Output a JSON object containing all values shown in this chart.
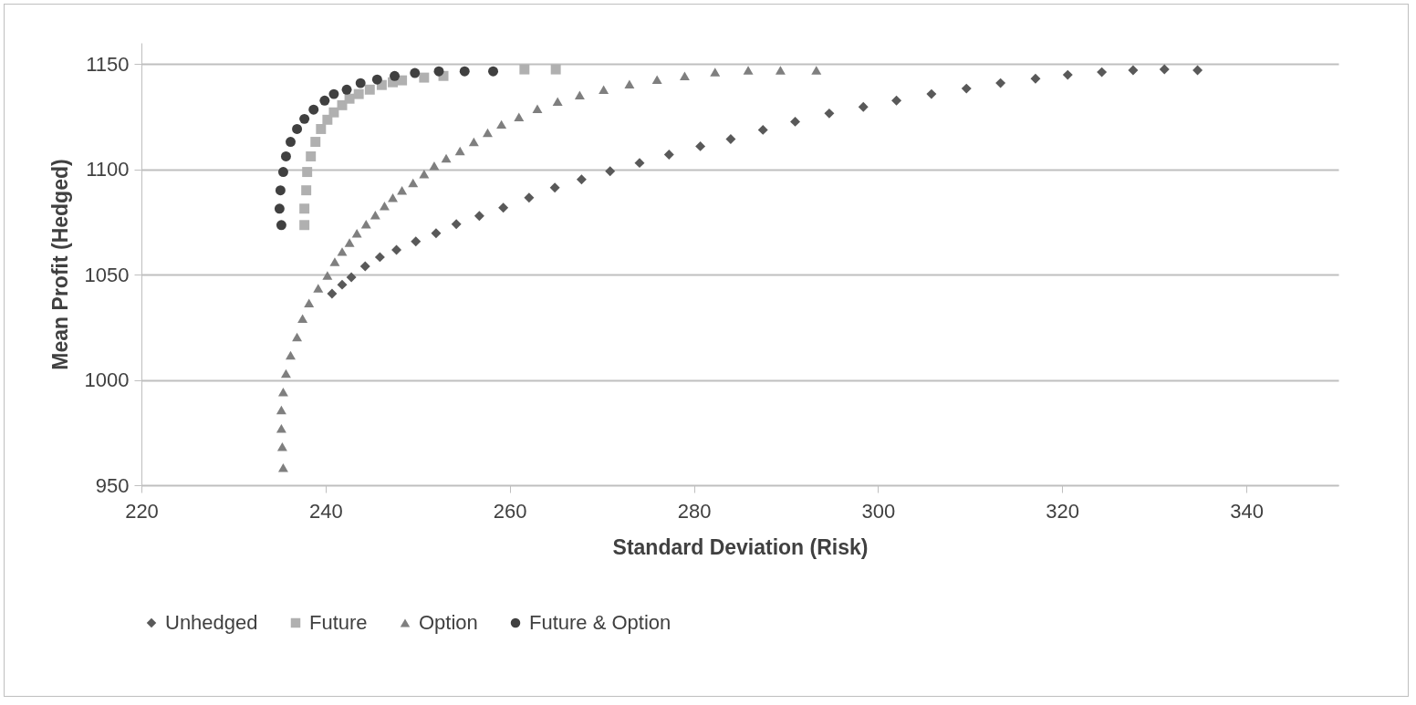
{
  "chart_data": {
    "type": "scatter",
    "xlabel": "Standard Deviation (Risk)",
    "ylabel": "Mean Profit (Hedged)",
    "xlim": [
      220,
      350
    ],
    "xticks": [
      220,
      240,
      260,
      280,
      300,
      320,
      340
    ],
    "ylim": [
      950,
      1160
    ],
    "yticks": [
      950,
      1000,
      1050,
      1100,
      1150
    ],
    "grid": "y",
    "legend": "bottom",
    "series": [
      {
        "name": "Unhedged",
        "color": "#595959",
        "marker": "diamond",
        "x": [
          240.7,
          241.8,
          242.8,
          244.3,
          245.9,
          247.7,
          249.8,
          252.0,
          254.2,
          256.7,
          259.3,
          262.1,
          264.9,
          267.8,
          270.9,
          274.1,
          277.3,
          280.7,
          284.0,
          287.5,
          291.0,
          294.7,
          298.4,
          302.0,
          305.8,
          309.6,
          313.3,
          317.1,
          320.6,
          324.3,
          327.7,
          331.1,
          334.7
        ],
        "values": [
          1040.9,
          1045.2,
          1048.7,
          1053.9,
          1058.3,
          1061.7,
          1065.7,
          1069.6,
          1073.9,
          1077.8,
          1081.7,
          1086.5,
          1091.3,
          1095.2,
          1099.1,
          1103.0,
          1107.0,
          1110.9,
          1114.3,
          1118.7,
          1122.6,
          1126.5,
          1129.6,
          1132.6,
          1135.7,
          1138.3,
          1140.9,
          1143.0,
          1144.8,
          1146.1,
          1147.0,
          1147.4,
          1147.0
        ]
      },
      {
        "name": "Future",
        "color": "#b0b0b0",
        "marker": "square",
        "x": [
          237.7,
          237.7,
          237.9,
          238.0,
          238.4,
          238.9,
          239.5,
          240.2,
          240.9,
          241.8,
          242.6,
          243.6,
          244.8,
          246.1,
          247.3,
          248.3,
          250.7,
          252.8,
          261.6,
          265.0
        ],
        "values": [
          1073.5,
          1081.3,
          1090.0,
          1098.7,
          1106.1,
          1113.0,
          1119.1,
          1123.5,
          1127.0,
          1130.4,
          1133.5,
          1135.7,
          1137.8,
          1140.0,
          1141.3,
          1142.2,
          1143.5,
          1144.3,
          1147.4,
          1147.4
        ]
      },
      {
        "name": "Option",
        "color": "#7f7f7f",
        "marker": "triangle",
        "x": [
          235.4,
          235.3,
          235.2,
          235.2,
          235.4,
          235.7,
          236.2,
          236.9,
          237.5,
          238.2,
          239.2,
          240.2,
          241.0,
          241.8,
          242.6,
          243.4,
          244.4,
          245.4,
          246.4,
          247.3,
          248.3,
          249.5,
          250.7,
          251.8,
          253.1,
          254.6,
          256.1,
          257.6,
          259.1,
          261.0,
          263.0,
          265.2,
          267.6,
          270.2,
          273.0,
          276.0,
          279.0,
          282.3,
          285.9,
          289.4,
          293.3
        ],
        "values": [
          958.3,
          968.3,
          977.0,
          985.7,
          994.3,
          1003.0,
          1011.7,
          1020.4,
          1029.1,
          1036.5,
          1043.5,
          1049.6,
          1056.1,
          1060.9,
          1065.2,
          1069.6,
          1073.9,
          1078.3,
          1082.6,
          1086.5,
          1090.0,
          1093.5,
          1097.8,
          1101.7,
          1105.2,
          1108.7,
          1113.0,
          1117.4,
          1121.3,
          1124.8,
          1128.7,
          1132.2,
          1135.2,
          1137.8,
          1140.4,
          1142.6,
          1144.3,
          1146.1,
          1147.0,
          1147.0,
          1147.0
        ]
      },
      {
        "name": "Future & Option",
        "color": "#404040",
        "marker": "circle",
        "x": [
          235.2,
          235.0,
          235.1,
          235.4,
          235.7,
          236.2,
          236.9,
          237.7,
          238.7,
          239.9,
          240.9,
          242.3,
          243.8,
          245.6,
          247.5,
          249.7,
          252.3,
          255.1,
          258.2
        ],
        "values": [
          1073.5,
          1081.3,
          1090.0,
          1098.7,
          1106.1,
          1113.0,
          1119.1,
          1123.9,
          1128.3,
          1132.6,
          1135.7,
          1137.8,
          1140.9,
          1142.6,
          1144.3,
          1145.7,
          1146.5,
          1146.5,
          1146.5
        ]
      }
    ]
  }
}
